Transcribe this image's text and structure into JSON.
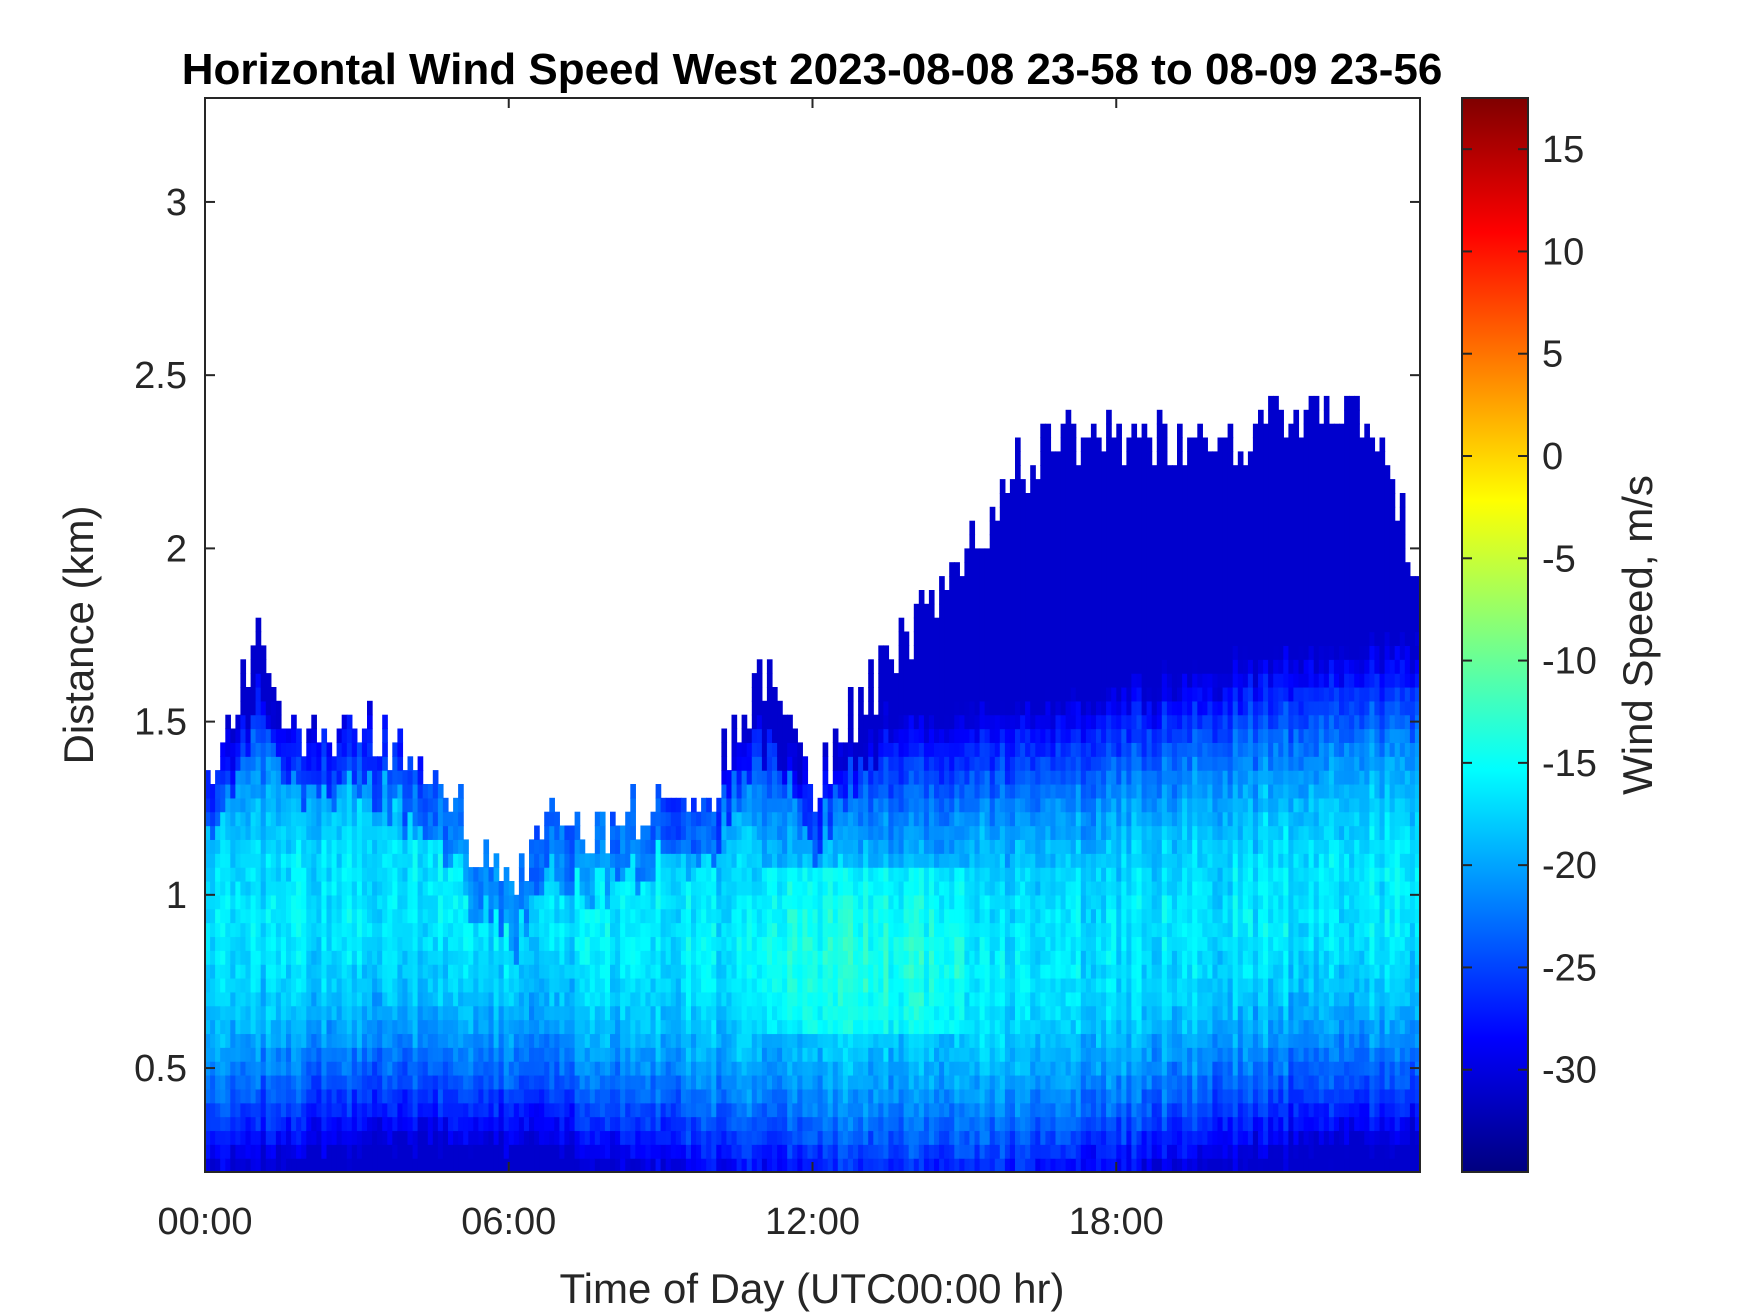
{
  "chart_data": {
    "type": "heatmap",
    "title": "Horizontal Wind Speed West 2023-08-08 23-58 to 08-09 23-56",
    "xlabel": "Time of Day (UTC00:00 hr)",
    "ylabel": "Distance (km)",
    "x_ticks": [
      "00:00",
      "06:00",
      "12:00",
      "18:00"
    ],
    "x_tick_hours": [
      0,
      6,
      12,
      18
    ],
    "xlim_hours": [
      0,
      24
    ],
    "y_ticks": [
      "0.5",
      "1",
      "1.5",
      "2",
      "2.5",
      "3"
    ],
    "y_tick_values": [
      0.5,
      1,
      1.5,
      2,
      2.5,
      3
    ],
    "ylim_km": [
      0.2,
      3.3
    ],
    "colorbar": {
      "label": "Wind Speed, m/s",
      "ticks": [
        "15",
        "10",
        "5",
        "0",
        "-5",
        "-10",
        "-15",
        "-20",
        "-25",
        "-30"
      ],
      "tick_values": [
        15,
        10,
        5,
        0,
        -5,
        -10,
        -15,
        -20,
        -25,
        -30
      ],
      "clim": [
        -35,
        17.5
      ],
      "colormap": "jet"
    },
    "grid": false,
    "valid_data_top_km": {
      "hours": [
        0,
        0.5,
        1,
        2,
        3,
        4,
        4.9,
        5.2,
        6,
        7,
        8,
        9,
        10,
        11,
        11.5,
        12,
        13,
        14,
        15,
        16,
        17,
        18,
        19,
        20,
        21,
        22,
        23,
        24
      ],
      "top_km": [
        1.3,
        1.5,
        1.7,
        1.4,
        1.5,
        1.4,
        1.3,
        1.15,
        1.0,
        1.2,
        1.15,
        1.25,
        1.3,
        1.6,
        1.55,
        1.3,
        1.55,
        1.75,
        1.95,
        2.2,
        2.3,
        2.3,
        2.3,
        2.25,
        2.35,
        2.4,
        2.35,
        1.9
      ]
    }
  }
}
